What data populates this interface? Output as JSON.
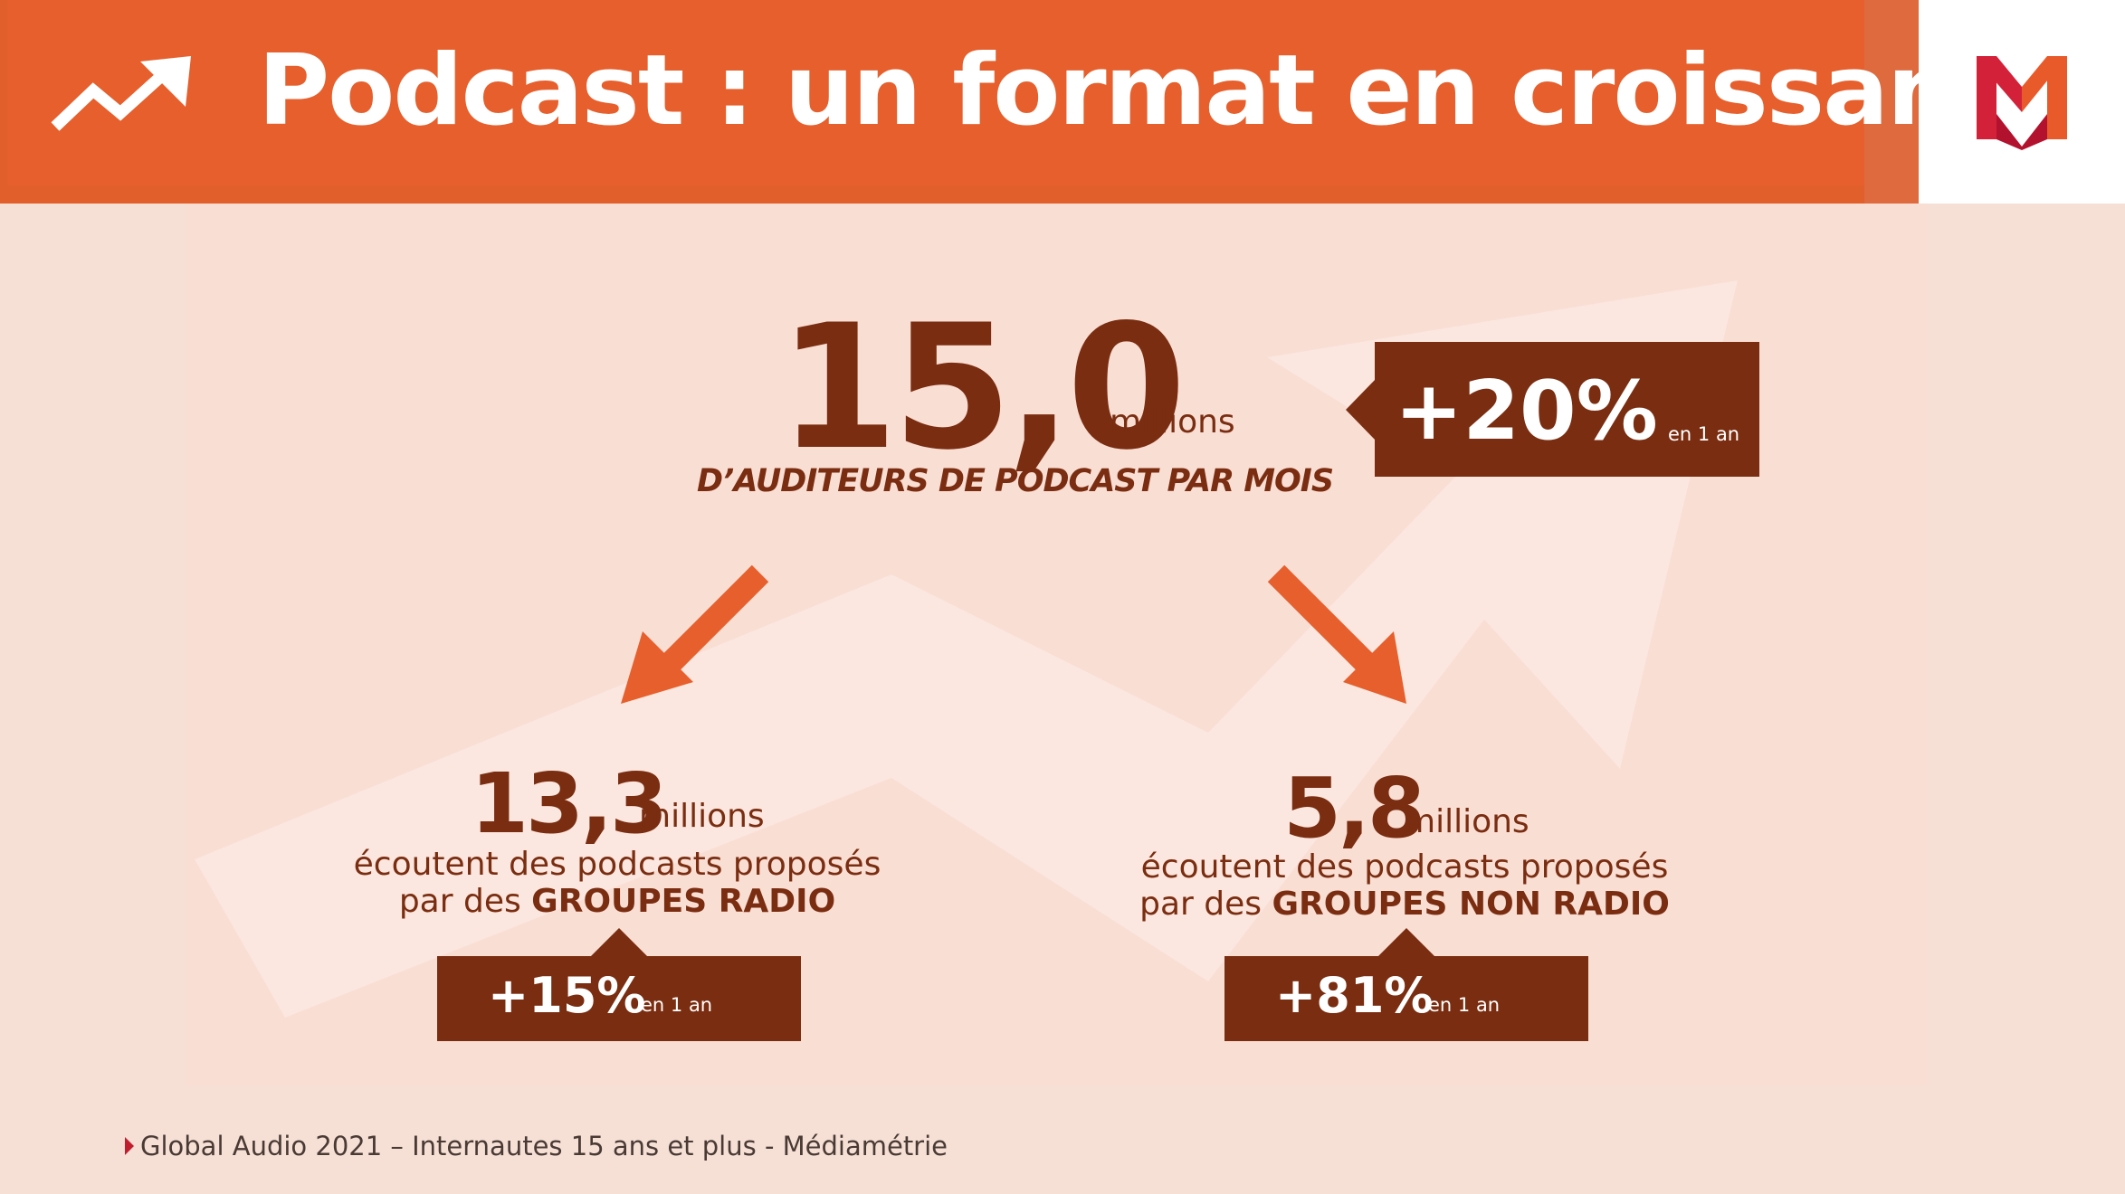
{
  "header": {
    "title": "Podcast : un format en croissance",
    "trend_icon": "trending-up-icon",
    "logo_icon": "mediametrie-logo-icon",
    "colors": {
      "bar": "#e65f2c",
      "text": "#ffffff"
    }
  },
  "main": {
    "value": "15,0",
    "unit": "millions",
    "subtitle": "D’AUDITEURS DE PODCAST PAR MOIS",
    "growth": {
      "value": "+20%",
      "period": "en 1 an"
    }
  },
  "left": {
    "value": "13,3",
    "unit": "millions",
    "desc_line1": "écoutent des podcasts proposés",
    "desc_pre": "par des ",
    "desc_bold": "GROUPES RADIO",
    "growth": {
      "value": "+15%",
      "period": "en 1 an"
    }
  },
  "right": {
    "value": "5,8",
    "unit": "millions",
    "desc_line1": "écoutent des podcasts proposés",
    "desc_pre": "par des ",
    "desc_bold": "GROUPES NON RADIO",
    "growth": {
      "value": "+81%",
      "period": "en 1 an"
    }
  },
  "footer": {
    "source": "Global Audio 2021 – Internautes 15 ans et plus - Médiamétrie"
  },
  "colors": {
    "accent": "#e65f2c",
    "dark_brown": "#7a2d10",
    "background": "#f6e0d6"
  }
}
